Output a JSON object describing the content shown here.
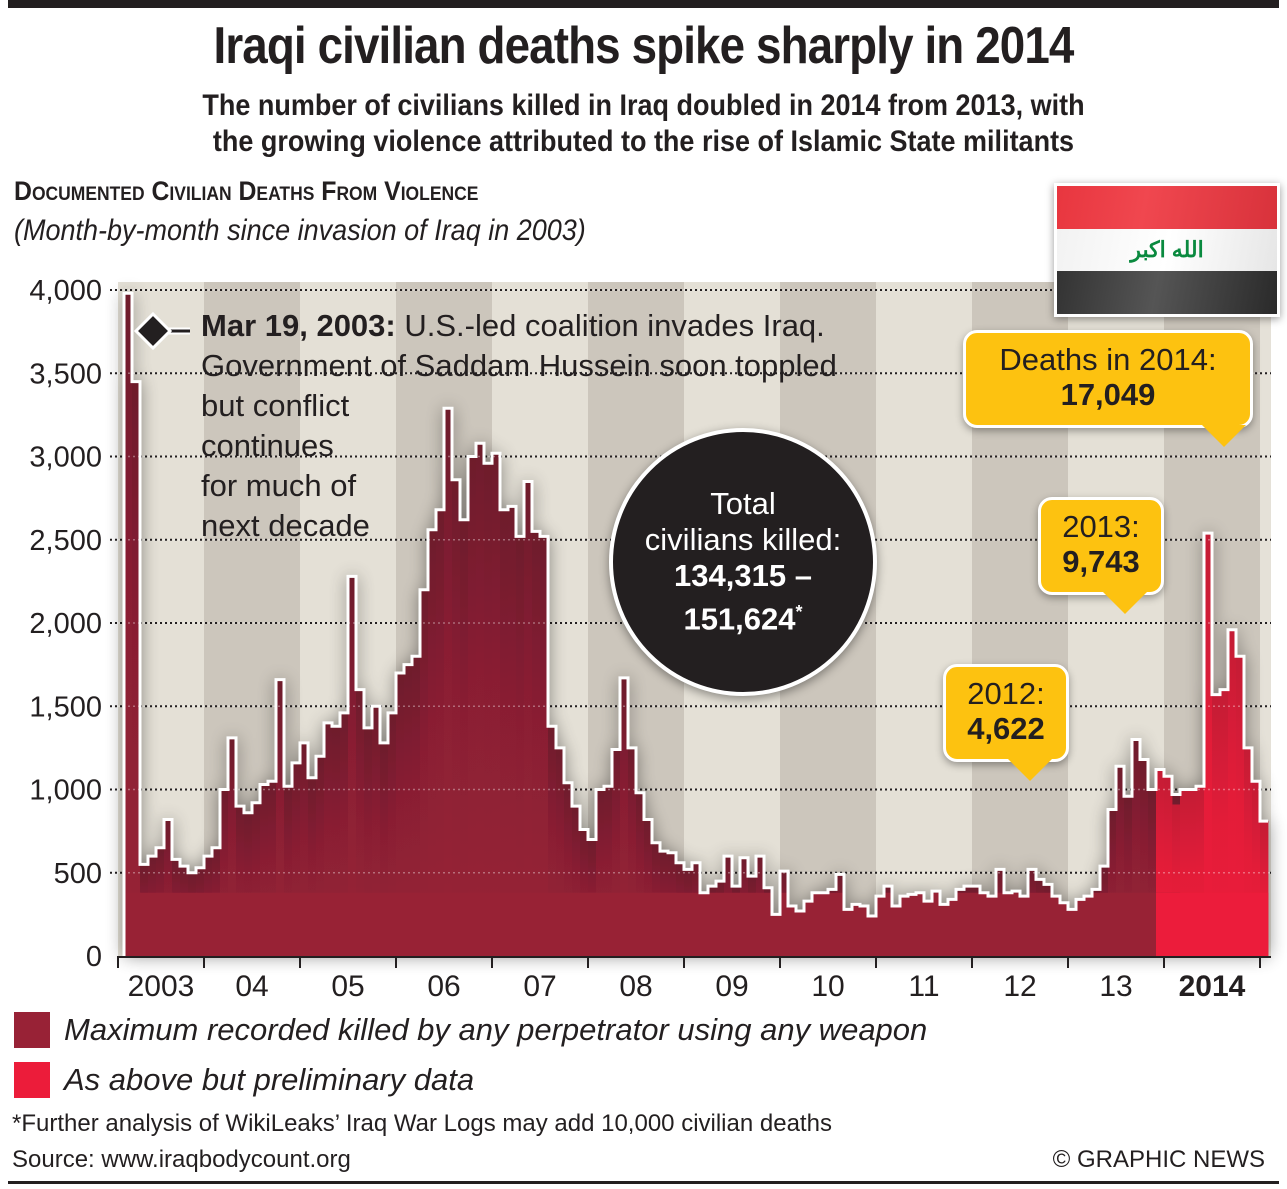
{
  "header": {
    "title": "Iraqi civilian deaths spike sharply in 2014",
    "subtitle_line1": "The number of civilians killed in Iraq doubled in 2014 from 2013, with",
    "subtitle_line2": "the growing violence attributed to the rise of Islamic State militants",
    "chart_heading": "Documented Civilian Deaths From Violence",
    "chart_subheading": "(Month-by-month since invasion of Iraq in 2003)"
  },
  "flag": {
    "country": "Iraq",
    "inscription": "الله اكبر",
    "colors": {
      "top": "#e8363f",
      "middle": "#ffffff",
      "bottom": "#333333",
      "script": "#0a8a3f"
    }
  },
  "annotation": {
    "date": "Mar 19, 2003:",
    "text_line1": " U.S.-led coalition invades Iraq.",
    "text_line2": "Government of Saddam Hussein soon toppled",
    "text_line3": "but conflict",
    "text_line4": "continues",
    "text_line5": "for much of",
    "text_line6": "next decade"
  },
  "total_circle": {
    "label_line1": "Total",
    "label_line2": "civilians killed:",
    "value_line1": "134,315 –",
    "value_line2": "151,624",
    "footnote_mark": "*"
  },
  "callouts": [
    {
      "label": "Deaths in 2014:",
      "value": "17,049"
    },
    {
      "label": "2013:",
      "value": "9,743"
    },
    {
      "label": "2012:",
      "value": "4,622"
    }
  ],
  "legend": [
    {
      "label": "Maximum recorded killed by any perpetrator using any weapon",
      "color": "#982236"
    },
    {
      "label": "As above but preliminary data",
      "color": "#ec1c3a"
    }
  ],
  "footer": {
    "footnote": "*Further analysis of WikiLeaks’ Iraq War Logs may add 10,000 civilian deaths",
    "source": "Source: www.iraqbodycount.org",
    "credit": "© GRAPHIC NEWS"
  },
  "chart_data": {
    "type": "bar",
    "title": "Documented Civilian Deaths From Violence",
    "subtitle": "(Month-by-month since invasion of Iraq in 2003)",
    "xlabel": "",
    "ylabel": "",
    "ylim": [
      0,
      4000
    ],
    "yticks": [
      0,
      500,
      1000,
      1500,
      2000,
      2500,
      3000,
      3500,
      4000
    ],
    "ytick_labels": [
      "0",
      "500",
      "1,000",
      "1,500",
      "2,000",
      "2,500",
      "3,000",
      "3,500",
      "4,000"
    ],
    "grid": true,
    "xtick_labels": [
      "2003",
      "04",
      "05",
      "06",
      "07",
      "08",
      "09",
      "10",
      "11",
      "12",
      "13",
      "2014"
    ],
    "start": "2003-03",
    "series": [
      {
        "name": "Maximum recorded killed by any perpetrator using any weapon",
        "color": "#982236",
        "start": "2003-03",
        "values": [
          3980,
          3450,
          550,
          600,
          650,
          820,
          580,
          540,
          500,
          530,
          600,
          650,
          1000,
          1310,
          900,
          860,
          920,
          1030,
          1050,
          1660,
          1020,
          1160,
          1280,
          1070,
          1200,
          1400,
          1380,
          1460,
          2280,
          1600,
          1370,
          1500,
          1280,
          1460,
          1700,
          1750,
          1800,
          2200,
          2560,
          2680,
          3290,
          2860,
          2620,
          3000,
          3080,
          2960,
          3020,
          2680,
          2700,
          2520,
          2850,
          2550,
          2520,
          1380,
          1250,
          1040,
          900,
          760,
          700,
          1000,
          1020,
          1240,
          1670,
          1250,
          980,
          820,
          680,
          630,
          620,
          560,
          520,
          560,
          380,
          420,
          450,
          600,
          420,
          590,
          480,
          600,
          410,
          250,
          510,
          300,
          270,
          330,
          380,
          380,
          400,
          490,
          280,
          310,
          300,
          240,
          360,
          420,
          300,
          360,
          370,
          380,
          330,
          390,
          310,
          340,
          400,
          420,
          420,
          380,
          360,
          520,
          380,
          390,
          360,
          520,
          460,
          430,
          360,
          320,
          280,
          340,
          360,
          400,
          540,
          880,
          1140,
          960,
          1300,
          1180,
          1000,
          840,
          920,
          970
        ]
      },
      {
        "name": "As above but preliminary data",
        "color": "#ec1c3a",
        "start": "2013-12",
        "values": [
          1120,
          1080,
          910,
          1000,
          1000,
          1020,
          2540,
          1570,
          1600,
          1960,
          1800,
          1250,
          1050,
          810
        ]
      }
    ],
    "annotations": [
      {
        "x": "2003-03",
        "text": "Mar 19, 2003: U.S.-led coalition invades Iraq. Government of Saddam Hussein soon toppled but conflict continues for much of next decade"
      },
      {
        "text": "Total civilians killed: 134,315 – 151,624*"
      },
      {
        "x": "2012",
        "text": "2012: 4,622"
      },
      {
        "x": "2013",
        "text": "2013: 9,743"
      },
      {
        "x": "2014",
        "text": "Deaths in 2014: 17,049"
      }
    ],
    "legend_position": "bottom-left"
  }
}
